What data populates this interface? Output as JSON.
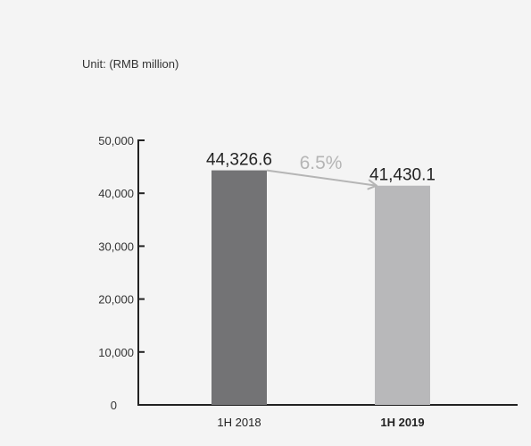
{
  "chart_data": {
    "type": "bar",
    "unit_label": "Unit: (RMB million)",
    "categories": [
      "1H 2018",
      "1H 2019"
    ],
    "category_bold": [
      false,
      true
    ],
    "values": [
      44326.6,
      41430.1
    ],
    "value_labels": [
      "44,326.6",
      "41,430.1"
    ],
    "bar_colors": [
      "#737375",
      "#b8b8ba"
    ],
    "ylim": [
      0,
      50000
    ],
    "yticks": [
      0,
      10000,
      20000,
      30000,
      40000,
      50000
    ],
    "ytick_labels": [
      "0",
      "10,000",
      "20,000",
      "30,000",
      "40,000",
      "50,000"
    ],
    "change_label": "6.5%",
    "change_color": "#b5b5b5",
    "arrow_color": "#b5b5b5",
    "axis_color": "#222222",
    "grid": false,
    "legend": "none"
  }
}
